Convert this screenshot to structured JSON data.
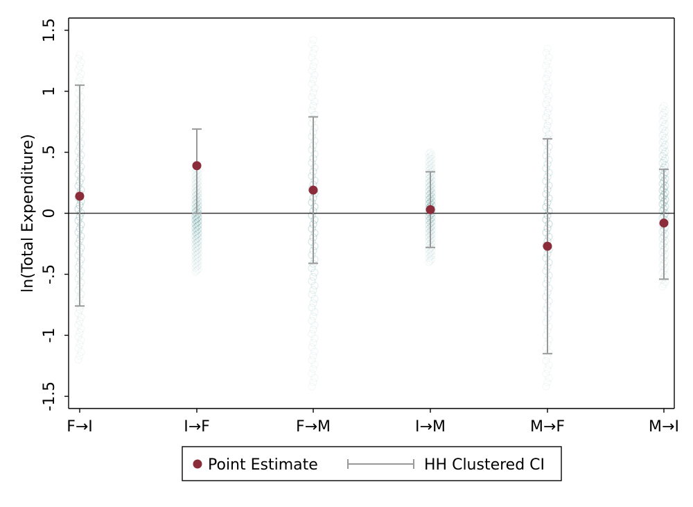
{
  "chart_data": {
    "type": "scatter",
    "ylabel": "ln(Total Expenditure)",
    "xlabel": "",
    "title": "",
    "categories": [
      "F→I",
      "I→F",
      "F→M",
      "I→M",
      "M→F",
      "M→I"
    ],
    "ylim": [
      -1.6,
      1.6
    ],
    "yticks": [
      -1.5,
      -1,
      -0.5,
      0,
      0.5,
      1,
      1.5
    ],
    "ytick_labels": [
      "-1.5",
      "-1",
      "-.5",
      "0",
      ".5",
      "1",
      "1.5"
    ],
    "reference_line_y": 0,
    "grid": false,
    "legend": {
      "position": "bottom",
      "entries": [
        "Point Estimate",
        "HH Clustered CI"
      ]
    },
    "series": [
      {
        "name": "Point Estimate",
        "values": [
          0.14,
          0.39,
          0.19,
          0.03,
          -0.27,
          -0.08
        ]
      },
      {
        "name": "HH Clustered CI",
        "lower": [
          -0.76,
          0.0,
          -0.41,
          -0.28,
          -1.15,
          -0.54
        ],
        "upper": [
          1.05,
          0.69,
          0.79,
          0.34,
          0.61,
          0.36
        ]
      }
    ],
    "distribution_ranges": [
      [
        -1.2,
        1.3
      ],
      [
        -0.48,
        0.38
      ],
      [
        -1.42,
        1.42
      ],
      [
        -0.4,
        0.5
      ],
      [
        -1.42,
        1.35
      ],
      [
        -0.6,
        0.88
      ]
    ],
    "colors": {
      "point": "#8b2c3a",
      "ci": "#999999",
      "distribution": "#2e7d7d",
      "axis": "#000000",
      "zero_line": "#333333"
    }
  }
}
